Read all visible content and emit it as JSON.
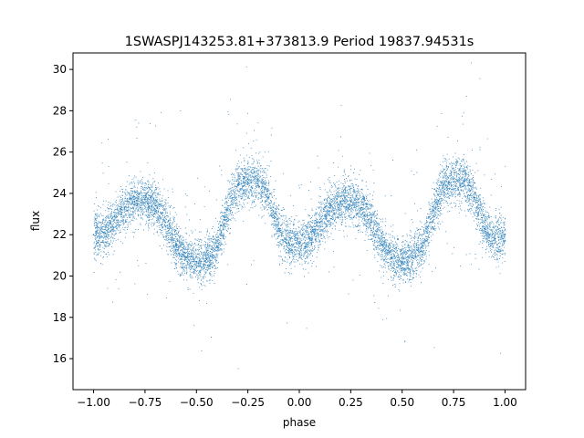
{
  "chart_data": {
    "type": "scatter",
    "title": "1SWASPJ143253.81+373813.9 Period 19837.94531s",
    "xlabel": "phase",
    "ylabel": "flux",
    "xlim": [
      -1.1,
      1.1
    ],
    "ylim": [
      14.5,
      30.8
    ],
    "xticks": [
      -1.0,
      -0.75,
      -0.5,
      -0.25,
      0.0,
      0.25,
      0.5,
      0.75,
      1.0
    ],
    "xtick_labels": [
      "−1.00",
      "−0.75",
      "−0.50",
      "−0.25",
      "0.00",
      "0.25",
      "0.50",
      "0.75",
      "1.00"
    ],
    "yticks": [
      16,
      18,
      20,
      22,
      24,
      26,
      28,
      30
    ],
    "ytick_labels": [
      "16",
      "18",
      "20",
      "22",
      "24",
      "26",
      "28",
      "30"
    ],
    "grid": false,
    "marker_color": "#1f77b4",
    "series": [
      {
        "x": [
          -1.0,
          -0.95,
          -0.9,
          -0.85,
          -0.8,
          -0.75,
          -0.7,
          -0.65,
          -0.6,
          -0.55,
          -0.5,
          -0.45,
          -0.4,
          -0.35,
          -0.3,
          -0.25,
          -0.2,
          -0.15,
          -0.1,
          -0.05,
          0.0,
          0.05,
          0.1,
          0.15,
          0.2,
          0.25,
          0.3,
          0.35,
          0.4,
          0.45,
          0.5,
          0.55,
          0.6,
          0.65,
          0.7,
          0.75,
          0.8,
          0.85,
          0.9,
          0.95,
          1.0
        ],
        "y": [
          22.0,
          22.1,
          22.7,
          23.3,
          23.6,
          23.7,
          23.4,
          22.6,
          21.5,
          20.9,
          20.7,
          20.8,
          21.4,
          23.2,
          24.4,
          24.7,
          24.6,
          23.8,
          22.3,
          21.6,
          21.6,
          21.8,
          22.6,
          23.3,
          23.6,
          23.6,
          23.3,
          22.6,
          21.5,
          20.9,
          20.7,
          20.9,
          21.5,
          23.2,
          24.4,
          24.7,
          24.6,
          23.8,
          22.3,
          21.8,
          22.0
        ]
      }
    ]
  }
}
